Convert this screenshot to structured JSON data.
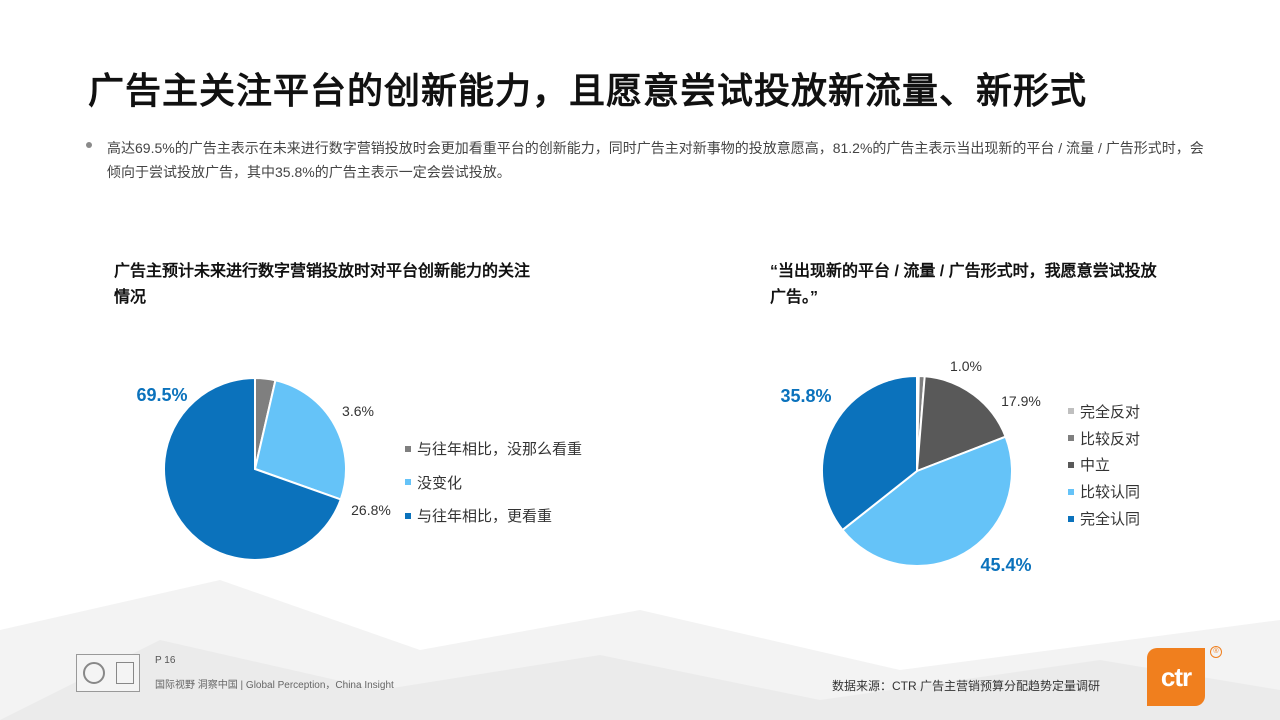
{
  "header": {
    "title": "广告主关注平台的创新能力，且愿意尝试投放新流量、新形式"
  },
  "summary": {
    "text": "高达69.5%的广告主表示在未来进行数字营销投放时会更加看重平台的创新能力，同时广告主对新事物的投放意愿高，81.2%的广告主表示当出现新的平台 / 流量 / 广告形式时，会倾向于尝试投放广告，其中35.8%的广告主表示一定会尝试投放。"
  },
  "chart_data": [
    {
      "type": "pie",
      "title": "广告主预计未来进行数字营销投放时对平台创新能力的关注情况",
      "categories": [
        "与往年相比，没那么看重",
        "没变化",
        "与往年相比，更看重"
      ],
      "values": [
        3.6,
        26.8,
        69.5
      ],
      "labels": [
        "3.6%",
        "26.8%",
        "69.5%"
      ],
      "colors": [
        "#7f7f7f",
        "#65c3f8",
        "#0b72bc"
      ],
      "highlight": "与往年相比，更看重",
      "legend": "right"
    },
    {
      "type": "pie",
      "title": "“当出现新的平台 / 流量 / 广告形式时，我愿意尝试投放广告。”",
      "categories": [
        "完全反对",
        "比较反对",
        "中立",
        "比较认同",
        "完全认同"
      ],
      "values": [
        0.3,
        1.0,
        17.9,
        45.4,
        35.8
      ],
      "labels": [
        "",
        "1.0%",
        "17.9%",
        "45.4%",
        "35.8%"
      ],
      "colors": [
        "#bfbfbf",
        "#7f7f7f",
        "#595959",
        "#65c3f8",
        "#0b72bc"
      ],
      "highlight": "完全认同",
      "legend": "right"
    }
  ],
  "footer": {
    "page": "P 16",
    "slogan": "国际视野  洞察中国 |  Global Perception，China Insight",
    "source": "数据来源：CTR 广告主营销预算分配趋势定量调研",
    "logo_text": "ctr",
    "logo_mark": "®"
  },
  "theme": {
    "accent": "#0b72bc",
    "logo": "#f07f1e"
  }
}
